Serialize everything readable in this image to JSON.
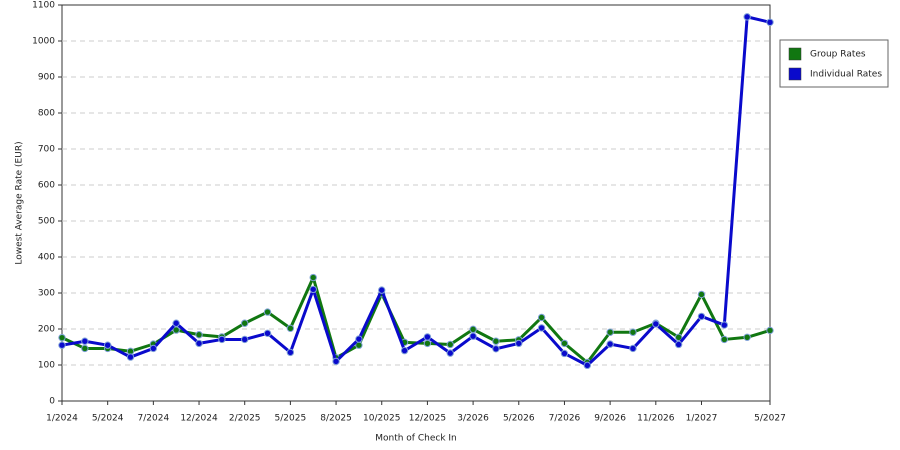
{
  "chart_data": {
    "type": "line",
    "y_label": "Lowest Average Rate (EUR)",
    "x_label": "Month of Check In",
    "categories": [
      "1/2024",
      null,
      "5/2024",
      null,
      "7/2024",
      null,
      "12/2024",
      null,
      "2/2025",
      null,
      "5/2025",
      null,
      "8/2025",
      null,
      "10/2025",
      null,
      "12/2025",
      null,
      "3/2026",
      null,
      "5/2026",
      null,
      "7/2026",
      null,
      "9/2026",
      null,
      "11/2026",
      null,
      "1/2027",
      null,
      null,
      "5/2027"
    ],
    "series": [
      {
        "name": "Group Rates",
        "color": "#117711",
        "values": [
          176,
          146,
          146,
          138,
          158,
          197,
          184,
          178,
          216,
          247,
          202,
          343,
          120,
          155,
          298,
          163,
          160,
          157,
          199,
          166,
          170,
          232,
          160,
          107,
          191,
          191,
          216,
          177,
          296,
          171,
          177,
          196
        ]
      },
      {
        "name": "Individual Rates",
        "color": "#0a0acc",
        "values": [
          155,
          166,
          155,
          122,
          146,
          216,
          160,
          171,
          171,
          188,
          135,
          310,
          110,
          172,
          308,
          140,
          178,
          133,
          180,
          145,
          160,
          203,
          132,
          99,
          158,
          146,
          214,
          157,
          235,
          211,
          1067,
          1052
        ]
      }
    ],
    "ylim": [
      0,
      1100
    ],
    "yticks": [
      0,
      100,
      200,
      300,
      400,
      500,
      600,
      700,
      800,
      900,
      1000,
      1100
    ],
    "grid": true,
    "legend": "right"
  }
}
